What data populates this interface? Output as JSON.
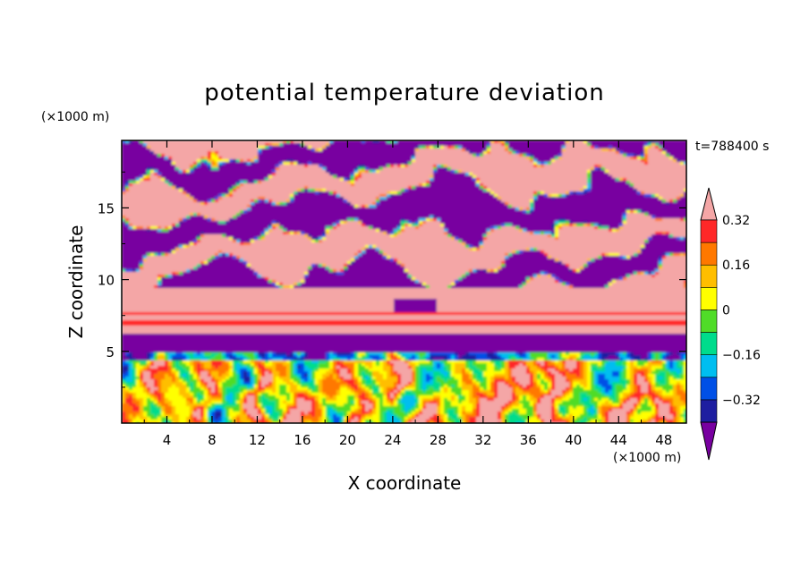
{
  "chart_data": {
    "type": "heatmap",
    "title": "potential temperature deviation",
    "xlabel": "X coordinate",
    "ylabel": "Z coordinate",
    "x_unit": "(×1000 m)",
    "y_unit": "(×1000 m)",
    "time_label": "t=788400 s",
    "xlim": [
      0,
      50
    ],
    "ylim": [
      0,
      19.7
    ],
    "x_ticks": [
      4,
      8,
      12,
      16,
      20,
      24,
      28,
      32,
      36,
      40,
      44,
      48
    ],
    "y_ticks": [
      5,
      10,
      15
    ],
    "x_tick_labels": [
      "4",
      "8",
      "12",
      "16",
      "20",
      "24",
      "28",
      "32",
      "36",
      "40",
      "44",
      "48"
    ],
    "y_tick_labels": [
      "5",
      "10",
      "15"
    ],
    "colorbar": {
      "levels": [
        -0.4,
        -0.32,
        -0.24,
        -0.16,
        -0.08,
        0,
        0.08,
        0.16,
        0.24,
        0.32,
        0.4
      ],
      "labels": [
        "0.32",
        "0.16",
        "0",
        "−0.16",
        "−0.32"
      ],
      "label_values": [
        0.32,
        0.16,
        0,
        -0.16,
        -0.32
      ],
      "colors": [
        "#7800a0",
        "#1e1ea0",
        "#0050e6",
        "#00bef0",
        "#00dc8c",
        "#50dc28",
        "#ffff00",
        "#ffbe00",
        "#ff7800",
        "#ff2828",
        "#f4a6a6"
      ],
      "extend": "both"
    },
    "bands": [
      {
        "z": [
          0,
          1.6
        ],
        "value": "mixed"
      },
      {
        "z": [
          1.6,
          5.0
        ],
        "value": "mixed convective plumes"
      },
      {
        "z": [
          5.0,
          6.3
        ],
        "value": -0.4
      },
      {
        "z": [
          6.3,
          6.8
        ],
        "value": 0.4
      },
      {
        "z": [
          6.8,
          7.1
        ],
        "value": 0.3
      },
      {
        "z": [
          7.1,
          7.5
        ],
        "value": 0.4
      },
      {
        "z": [
          7.5,
          7.8
        ],
        "value": 0.3
      },
      {
        "z": [
          7.8,
          9.5
        ],
        "value": 0.4
      },
      {
        "z": [
          9.5,
          19.7
        ],
        "value": "alternating -0.4 / 0.4 layers"
      }
    ]
  }
}
